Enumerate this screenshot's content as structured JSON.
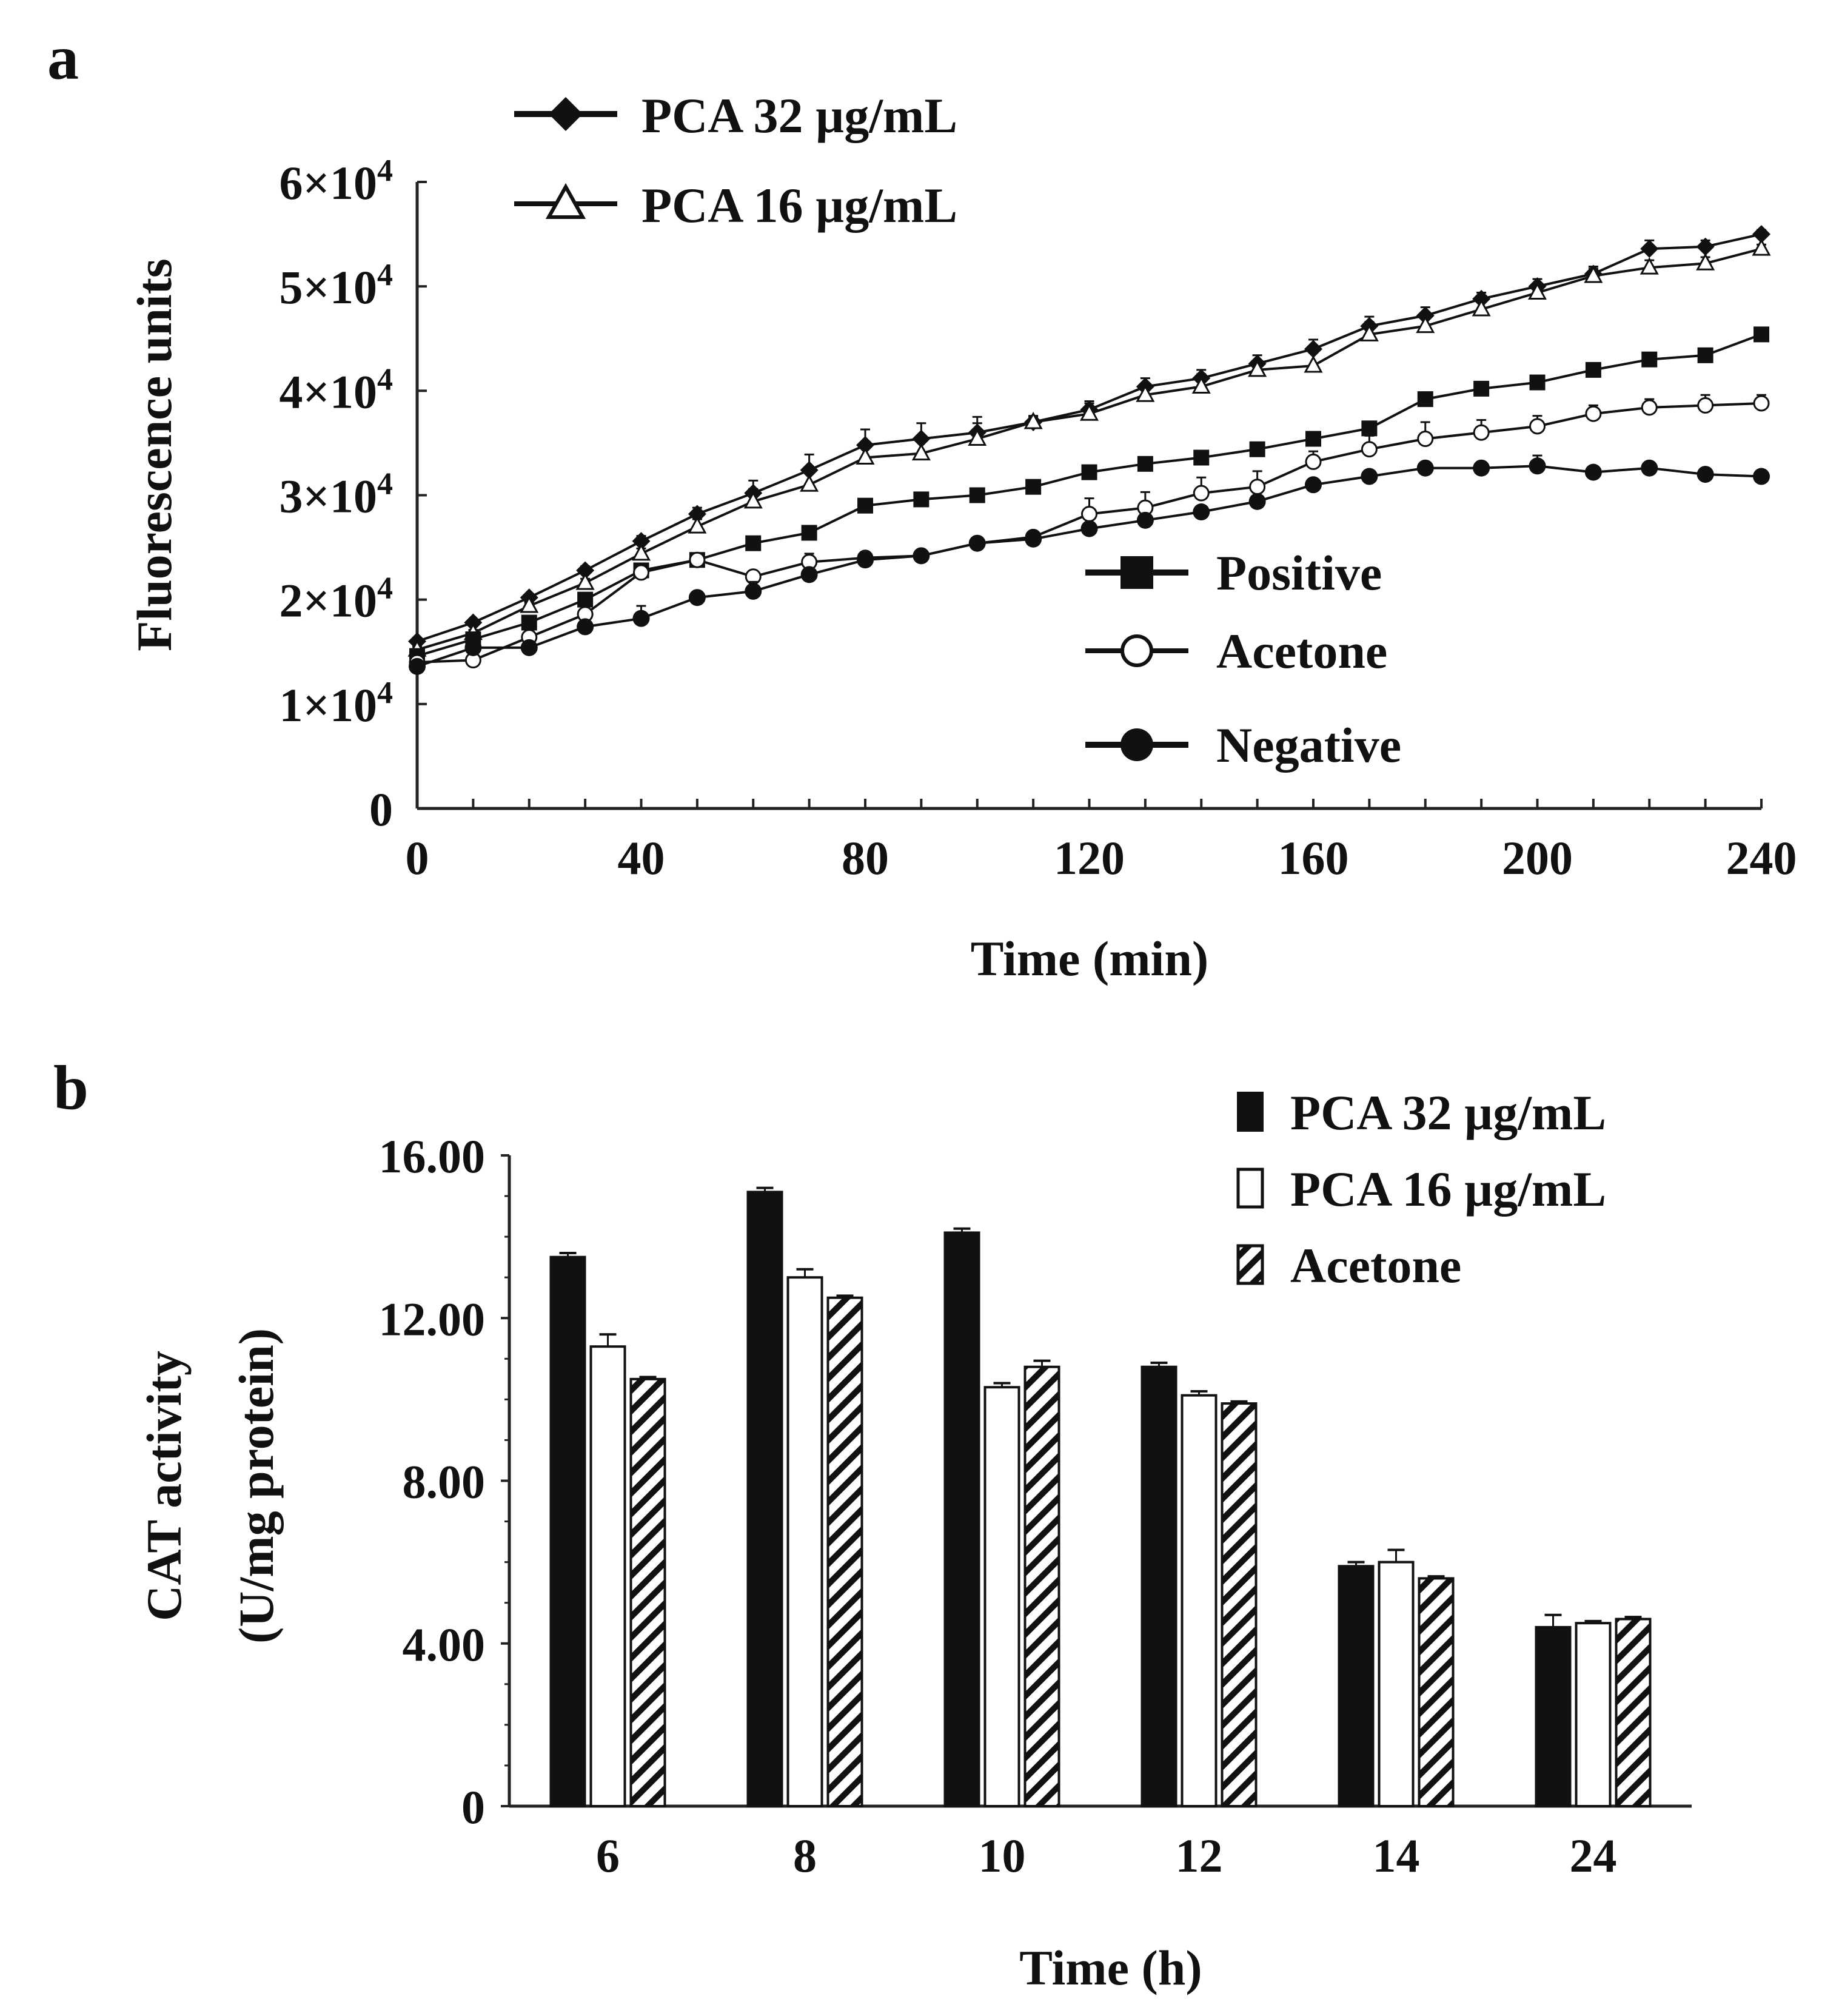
{
  "chart_data": [
    {
      "panel_label": "a",
      "type": "line",
      "xlabel": "Time (min)",
      "ylabel": "Fluorescence units",
      "xlim": [
        0,
        240
      ],
      "ylim": [
        0,
        60000
      ],
      "xticks": [
        0,
        40,
        80,
        120,
        160,
        200,
        240
      ],
      "xtick_labels": [
        "0",
        "40",
        "80",
        "120",
        "160",
        "200",
        "240"
      ],
      "yticks": [
        0,
        10000,
        20000,
        30000,
        40000,
        50000,
        60000
      ],
      "ytick_labels": [
        "0",
        "1×10",
        "2×10",
        "3×10",
        "4×10",
        "5×10",
        "6×10"
      ],
      "ytick_exponents": [
        "",
        "4",
        "4",
        "4",
        "4",
        "4",
        "4"
      ],
      "grid": false,
      "x": [
        0,
        10,
        20,
        30,
        40,
        50,
        60,
        70,
        80,
        90,
        100,
        110,
        120,
        130,
        140,
        150,
        160,
        170,
        180,
        190,
        200,
        210,
        220,
        230,
        240
      ],
      "series": [
        {
          "name": "PCA 32 µg/mL",
          "marker": "diamond-filled",
          "color": "#111111",
          "values": [
            16000,
            17800,
            20200,
            22800,
            25600,
            28200,
            30200,
            32400,
            34800,
            35400,
            36000,
            37000,
            38200,
            40400,
            41200,
            42600,
            44000,
            46200,
            47200,
            48800,
            50000,
            51200,
            53600,
            53800,
            55000
          ],
          "error": [
            300,
            300,
            300,
            400,
            500,
            600,
            1200,
            1500,
            1500,
            1500,
            1500,
            500,
            800,
            800,
            800,
            800,
            900,
            900,
            800,
            600,
            700,
            700,
            800,
            600,
            400
          ]
        },
        {
          "name": "PCA 16 µg/mL",
          "marker": "triangle-open",
          "color": "#111111",
          "values": [
            15200,
            16800,
            19400,
            21600,
            24400,
            27000,
            29400,
            31000,
            33600,
            34000,
            35400,
            37000,
            37800,
            39600,
            40400,
            42000,
            42400,
            45400,
            46200,
            47800,
            49400,
            51000,
            51800,
            52200,
            53600
          ],
          "error": [
            300,
            300,
            300,
            400,
            500,
            700,
            1200,
            1500,
            1500,
            1500,
            1500,
            600,
            1000,
            900,
            1200,
            900,
            1500,
            1200,
            1200,
            1000,
            800,
            700,
            700,
            600,
            400
          ]
        },
        {
          "name": "Positive",
          "marker": "square-filled",
          "color": "#111111",
          "values": [
            14600,
            16200,
            17800,
            20000,
            22800,
            23800,
            25400,
            26400,
            29000,
            29600,
            30000,
            30800,
            32200,
            33000,
            33600,
            34400,
            35400,
            36400,
            39200,
            40200,
            40800,
            42000,
            43000,
            43400,
            45400
          ],
          "error": [
            200,
            200,
            300,
            300,
            300,
            300,
            300,
            300,
            300,
            300,
            300,
            300,
            300,
            300,
            300,
            300,
            300,
            300,
            300,
            300,
            300,
            300,
            300,
            300,
            300
          ]
        },
        {
          "name": "Acetone",
          "marker": "circle-open",
          "color": "#111111",
          "values": [
            14000,
            14200,
            16400,
            18600,
            22600,
            23800,
            22200,
            23600,
            24000,
            24200,
            25400,
            26000,
            28200,
            28800,
            30200,
            30800,
            33200,
            34400,
            35400,
            36000,
            36600,
            37800,
            38400,
            38600,
            38800
          ],
          "error": [
            200,
            300,
            300,
            300,
            500,
            300,
            500,
            800,
            500,
            500,
            500,
            500,
            1500,
            1500,
            1500,
            1500,
            1000,
            1300,
            1600,
            1200,
            1000,
            800,
            800,
            1000,
            800
          ]
        },
        {
          "name": "Negative",
          "marker": "circle-filled",
          "color": "#111111",
          "values": [
            13600,
            15400,
            15400,
            17400,
            18200,
            20200,
            20800,
            22400,
            23800,
            24200,
            25400,
            25800,
            26800,
            27600,
            28400,
            29400,
            31000,
            31800,
            32600,
            32600,
            32800,
            32200,
            32600,
            32000,
            31800
          ],
          "error": [
            200,
            200,
            200,
            300,
            1200,
            300,
            900,
            500,
            400,
            300,
            300,
            300,
            300,
            300,
            300,
            300,
            300,
            300,
            300,
            300,
            1000,
            300,
            300,
            300,
            300
          ]
        }
      ],
      "legend": [
        {
          "position": "top-left",
          "entries": [
            "PCA 32 µg/mL",
            "PCA 16 µg/mL"
          ]
        },
        {
          "position": "bottom-right",
          "entries": [
            "Positive",
            "Acetone",
            "Negative"
          ]
        }
      ]
    },
    {
      "panel_label": "b",
      "type": "bar",
      "xlabel": "Time (h)",
      "ylabel": [
        "CAT activity",
        "(U/mg protein)"
      ],
      "ylim": [
        0,
        16
      ],
      "yticks": [
        0,
        4,
        8,
        12,
        16
      ],
      "ytick_labels": [
        "0",
        "4.00",
        "8.00",
        "12.00",
        "16.00"
      ],
      "grid": false,
      "categories": [
        "6",
        "8",
        "10",
        "12",
        "14",
        "24"
      ],
      "series": [
        {
          "name": "PCA 32 µg/mL",
          "fill": "solid-black",
          "values": [
            13.5,
            15.1,
            14.1,
            10.8,
            5.9,
            4.4
          ],
          "error": [
            0.1,
            0.1,
            0.1,
            0.1,
            0.1,
            0.3
          ]
        },
        {
          "name": "PCA 16 µg/mL",
          "fill": "white",
          "values": [
            11.3,
            13.0,
            10.3,
            10.1,
            6.0,
            4.5
          ],
          "error": [
            0.3,
            0.2,
            0.1,
            0.1,
            0.3,
            0.05
          ]
        },
        {
          "name": "Acetone",
          "fill": "diagonal-hatch",
          "values": [
            10.5,
            12.5,
            10.8,
            9.9,
            5.6,
            4.6
          ],
          "error": [
            0.05,
            0.05,
            0.15,
            0.05,
            0.05,
            0.05
          ]
        }
      ],
      "legend": {
        "position": "top-right",
        "entries": [
          "PCA 32 µg/mL",
          "PCA 16 µg/mL",
          "Acetone"
        ]
      }
    }
  ]
}
